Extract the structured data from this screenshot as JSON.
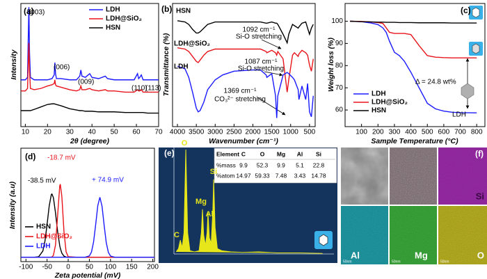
{
  "chart_data": [
    {
      "type": "line",
      "panel": "(a)",
      "xlabel": "2θ (degree)",
      "ylabel": "Intensity",
      "x": [
        8,
        10,
        11,
        11.3,
        11.6,
        11.9,
        12.3,
        14,
        17,
        20,
        22,
        23,
        23.3,
        23.6,
        24,
        26,
        30,
        33,
        34.5,
        35,
        35.5,
        37,
        39,
        40,
        43,
        46,
        47,
        50,
        55,
        59,
        60.5,
        61,
        61.5,
        62.2,
        63,
        65,
        70
      ],
      "series": [
        {
          "name": "LDH",
          "color": "#1a1aff",
          "values": [
            38,
            38,
            40,
            70,
            97,
            60,
            40,
            38,
            38,
            38,
            39,
            42,
            52,
            43,
            39,
            39,
            38,
            38,
            41,
            46,
            41,
            40,
            43,
            40,
            39,
            41,
            39,
            38,
            38,
            38,
            43,
            39,
            40,
            42,
            38,
            38,
            38
          ]
        },
        {
          "name": "LDH@SiO₂",
          "color": "#e8141b",
          "values": [
            29,
            29,
            31,
            50,
            68,
            45,
            31,
            30,
            31,
            33,
            34,
            35,
            38,
            34,
            33,
            32,
            30,
            29,
            30,
            33,
            30,
            30,
            31,
            30,
            29,
            30,
            29,
            29,
            28,
            28,
            30,
            29,
            29,
            30,
            28,
            28,
            28
          ]
        },
        {
          "name": "HSN",
          "color": "#000000",
          "values": [
            13,
            13,
            13,
            13,
            13,
            13,
            13,
            14,
            16,
            18,
            18.5,
            18.5,
            18.4,
            18.2,
            18,
            17,
            14.5,
            13.5,
            13,
            13,
            13,
            12.5,
            12.5,
            12.5,
            12,
            12,
            12,
            12,
            11.5,
            11.5,
            11.5,
            11.5,
            11.5,
            11.5,
            11.5,
            11,
            11
          ]
        }
      ],
      "xlim": [
        8,
        70
      ],
      "xticks": [
        10,
        20,
        30,
        40,
        50,
        60,
        70
      ],
      "ylim": [
        0,
        100
      ],
      "annotations": [
        "(003)",
        "(006)",
        "(009)",
        "(110)",
        "(113)"
      ]
    },
    {
      "type": "line",
      "panel": "(b)",
      "xlabel": "Wavenumber (cm⁻¹)",
      "ylabel": "Transmittance (%)",
      "x": [
        4000,
        3800,
        3700,
        3600,
        3500,
        3450,
        3400,
        3300,
        3200,
        3000,
        2800,
        2500,
        2000,
        1800,
        1650,
        1630,
        1500,
        1400,
        1369,
        1340,
        1200,
        1092,
        1050,
        950,
        900,
        800,
        780,
        700,
        600,
        550,
        500,
        450,
        400
      ],
      "series": [
        {
          "name": "HSN",
          "color": "#000000",
          "values": [
            86,
            85,
            83,
            79,
            76,
            76,
            77,
            80,
            83,
            85,
            85,
            85,
            85,
            85,
            84,
            84,
            85,
            84,
            84,
            83,
            75,
            68,
            75,
            83,
            82,
            80,
            81,
            84,
            85,
            80,
            75,
            80,
            83
          ]
        },
        {
          "name": "LDH@SiO₂",
          "color": "#e8141b",
          "values": [
            64,
            63,
            61,
            57,
            53,
            52,
            54,
            58,
            61,
            63,
            63,
            63,
            63,
            63,
            61,
            60,
            62,
            60,
            58,
            61,
            55,
            28,
            38,
            58,
            60,
            57,
            59,
            62,
            60,
            58,
            50,
            45,
            55
          ]
        },
        {
          "name": "LDH",
          "color": "#1a1aff",
          "values": [
            49,
            47,
            40,
            28,
            15,
            12,
            13,
            20,
            30,
            38,
            42,
            45,
            46,
            46,
            42,
            40,
            43,
            25,
            7,
            25,
            42,
            44,
            43,
            40,
            38,
            30,
            22,
            33,
            22,
            35,
            12,
            8,
            25
          ]
        }
      ],
      "xlim": [
        4130,
        350
      ],
      "xticks": [
        4000,
        3500,
        3000,
        2500,
        2000,
        1500,
        1000,
        500
      ],
      "ylim": [
        0,
        100
      ],
      "annotations": [
        "1092 cm⁻¹",
        "Si-O stretching",
        "1087 cm⁻¹",
        "Si-O stretching",
        "1369 cm⁻¹",
        "CO₃²⁻ stretching"
      ]
    },
    {
      "type": "line",
      "panel": "(c)",
      "xlabel": "Sample Temperature (°C)",
      "ylabel": "Weight loss (%)",
      "x": [
        30,
        100,
        150,
        200,
        230,
        250,
        270,
        300,
        330,
        360,
        400,
        450,
        500,
        550,
        600,
        650,
        700,
        800
      ],
      "series": [
        {
          "name": "LDH",
          "color": "#1a1aff",
          "values": [
            100,
            99.8,
            99.3,
            98.5,
            97,
            95,
            91,
            86,
            84.5,
            82,
            77,
            70,
            63,
            60.5,
            59.5,
            59,
            58.8,
            58.7
          ]
        },
        {
          "name": "LDH@SiO₂",
          "color": "#e8141b",
          "values": [
            100,
            99.9,
            99.7,
            99.4,
            99,
            97,
            95,
            94.5,
            94.5,
            94.5,
            94,
            89,
            84.5,
            83.8,
            83.6,
            83.5,
            83.5,
            83.5
          ]
        },
        {
          "name": "HSN",
          "color": "#000000",
          "values": [
            100,
            99.8,
            99.7,
            99.6,
            99.6,
            99.5,
            99.5,
            99.5,
            99.4,
            99.4,
            99.4,
            99.3,
            99.3,
            99.3,
            99.3,
            99.2,
            99.2,
            99.2
          ]
        }
      ],
      "xlim": [
        0,
        850
      ],
      "xticks": [
        100,
        200,
        300,
        400,
        500,
        600,
        700,
        800
      ],
      "ylim": [
        52.5,
        108
      ],
      "yticks": [
        60,
        70,
        80,
        90,
        100
      ],
      "annotations": [
        "Δ = 24.8 wt%",
        "LDH"
      ]
    },
    {
      "type": "line",
      "panel": "(d)",
      "xlabel": "Zeta potential (mV)",
      "ylabel": "Intensity (a.u)",
      "x": [
        -112,
        -80,
        -70,
        -60,
        -55,
        -50,
        -45,
        -40,
        -38.5,
        -35,
        -30,
        -25,
        -20,
        -18.7,
        -15,
        -10,
        -5,
        0,
        20,
        40,
        50,
        55,
        60,
        65,
        70,
        74.9,
        80,
        85,
        90,
        95,
        100,
        110,
        130,
        204
      ],
      "series": [
        {
          "name": "HSN",
          "color": "#000000",
          "values": [
            0,
            0,
            0.4,
            5.7,
            14.9,
            30,
            47,
            57.4,
            58,
            54.6,
            40.5,
            23.3,
            10.5,
            8.2,
            3.7,
            1,
            0.2,
            0,
            0,
            0,
            0,
            0,
            0,
            0,
            0,
            0,
            0,
            0,
            0,
            0,
            0,
            0,
            0,
            0
          ]
        },
        {
          "name": "LDH@SiO₂",
          "color": "#e8141b",
          "values": [
            0,
            0,
            0,
            0,
            0,
            0,
            0,
            0.1,
            0.3,
            1.7,
            11.4,
            38.6,
            65.5,
            67,
            55.4,
            23.4,
            5,
            0.5,
            0,
            0,
            0,
            0,
            0,
            0,
            0,
            0,
            0,
            0,
            0,
            0,
            0,
            0,
            0,
            0
          ]
        },
        {
          "name": "LDH",
          "color": "#1a1aff",
          "values": [
            0,
            0,
            0,
            0,
            0,
            0,
            0,
            0,
            0,
            0,
            0,
            0,
            0,
            0,
            0,
            0,
            0,
            0,
            0,
            0,
            1.2,
            4.8,
            14,
            30,
            47.4,
            55,
            46.8,
            29.3,
            13.4,
            4.5,
            1.1,
            0,
            0,
            0
          ]
        }
      ],
      "xlim": [
        -112,
        204
      ],
      "xticks": [
        -100,
        -50,
        0,
        50,
        100,
        150,
        200
      ],
      "ylim": [
        -4,
        100
      ],
      "annotations": [
        {
          "text": "-18.7 mV",
          "color": "#e8141b"
        },
        {
          "text": "-38.5 mV",
          "color": "#000000"
        },
        {
          "text": "+ 74.9 mV",
          "color": "#1a1aff"
        }
      ]
    },
    {
      "type": "area",
      "panel": "(e)",
      "color": "#e6e61a",
      "x": [
        0.1,
        0.2,
        0.28,
        0.36,
        0.44,
        0.52,
        0.6,
        0.7,
        0.9,
        1.1,
        1.2,
        1.25,
        1.3,
        1.38,
        1.45,
        1.49,
        1.55,
        1.63,
        1.7,
        1.74,
        1.8,
        1.9,
        2.1,
        2.5,
        3.0,
        3.7,
        4.5,
        5.5,
        6.5
      ],
      "values": [
        2,
        5,
        13,
        6,
        20,
        98,
        20,
        3,
        2,
        3,
        20,
        42,
        18,
        8,
        20,
        39,
        15,
        10,
        40,
        70,
        25,
        5,
        3,
        2,
        1.5,
        2,
        1,
        1,
        0.5
      ],
      "xlim": [
        0,
        7
      ],
      "ylim": [
        0,
        100
      ],
      "annotations": [
        "C",
        "O",
        "Mg",
        "Al",
        "Si"
      ]
    }
  ],
  "eds_table": {
    "header": [
      "Element",
      "C",
      "O",
      "Mg",
      "Al",
      "Si"
    ],
    "rows": [
      [
        "%mass",
        9.9,
        52.3,
        9.9,
        5.1,
        22.8
      ],
      [
        "%atom",
        14.97,
        59.33,
        7.48,
        3.43,
        14.78
      ]
    ]
  },
  "mapping": {
    "panel": "(f)",
    "labels": [
      "Si",
      "Al",
      "Mg",
      "O"
    ],
    "scale_bar": "50nm"
  }
}
